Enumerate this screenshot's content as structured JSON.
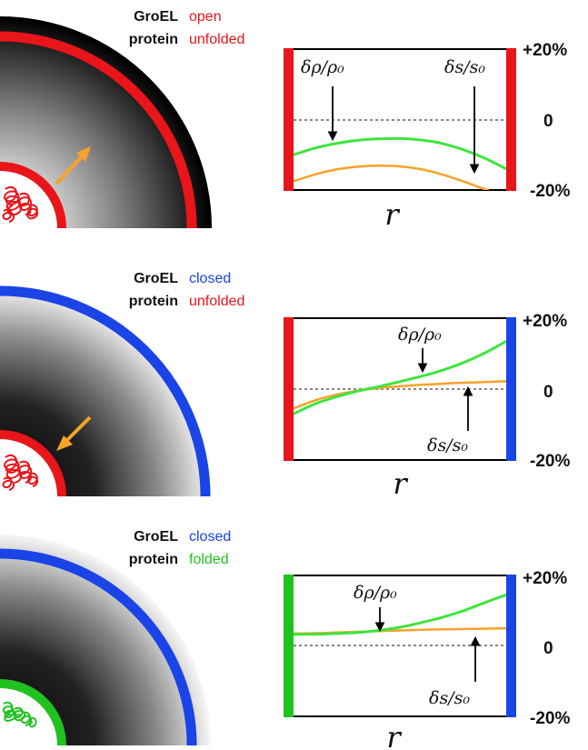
{
  "colors": {
    "red": "#e8151b",
    "blue": "#1a44e6",
    "green": "#1fc21f",
    "green_curve": "#3ee53e",
    "orange": "#f7a22a",
    "black": "#000000",
    "dotted": "#888888"
  },
  "y_ticks": [
    "+20%",
    "0",
    "-20%"
  ],
  "x_axis_label": "r",
  "panels": [
    {
      "header": {
        "groel_key": "GroEL",
        "groel_value": "open",
        "groel_color": "red",
        "protein_key": "protein",
        "protein_value": "unfolded",
        "protein_color": "red"
      },
      "left_wall_color": "red",
      "right_wall_color": "red",
      "quarter_outer_ring_color": "red",
      "quarter_inner_ring_color": "red",
      "quarter_gradient": "light-inside",
      "arrow_direction": "outward",
      "density_label": "δρ/ρ₀",
      "entropy_label": "δs/s₀",
      "chart_data": {
        "type": "line",
        "x": [
          0,
          0.1,
          0.2,
          0.3,
          0.4,
          0.5,
          0.6,
          0.7,
          0.8,
          0.9,
          1.0
        ],
        "ylim": [
          -20,
          20
        ],
        "series": [
          {
            "color": "green",
            "values": [
              -10,
              -8.1,
              -6.8,
              -5.9,
              -5.5,
              -5.4,
              -5.8,
              -6.8,
              -8.6,
              -11,
              -14
            ]
          },
          {
            "color": "orange",
            "values": [
              -17.5,
              -15.6,
              -14.2,
              -13.4,
              -13.1,
              -13.3,
              -14.1,
              -15.6,
              -17.6,
              -19.8,
              -22
            ]
          }
        ]
      }
    },
    {
      "header": {
        "groel_key": "GroEL",
        "groel_value": "closed",
        "groel_color": "blue",
        "protein_key": "protein",
        "protein_value": "unfolded",
        "protein_color": "red"
      },
      "left_wall_color": "red",
      "right_wall_color": "blue",
      "quarter_outer_ring_color": "blue",
      "quarter_inner_ring_color": "red",
      "quarter_gradient": "dark-inside",
      "arrow_direction": "inward",
      "density_label": "δρ/ρ₀",
      "entropy_label": "δs/s₀",
      "chart_data": {
        "type": "line",
        "x": [
          0,
          0.1,
          0.2,
          0.3,
          0.4,
          0.5,
          0.6,
          0.7,
          0.8,
          0.9,
          1.0
        ],
        "ylim": [
          -20,
          20
        ],
        "series": [
          {
            "color": "green",
            "values": [
              -7,
              -4.2,
              -2.2,
              -0.6,
              0.7,
              2.1,
              3.6,
              5.3,
              7.5,
              10.2,
              13.5
            ]
          },
          {
            "color": "orange",
            "values": [
              -5.5,
              -3.2,
              -1.6,
              -0.5,
              0.3,
              0.8,
              1.2,
              1.5,
              1.8,
              2.0,
              2.2
            ]
          }
        ]
      }
    },
    {
      "header": {
        "groel_key": "GroEL",
        "groel_value": "closed",
        "groel_color": "blue",
        "protein_key": "protein",
        "protein_value": "folded",
        "protein_color": "green"
      },
      "left_wall_color": "green",
      "right_wall_color": "blue",
      "quarter_outer_ring_color": "blue",
      "quarter_inner_ring_color": "green",
      "quarter_gradient": "dark-inside",
      "arrow_direction": "none",
      "density_label": "δρ/ρ₀",
      "entropy_label": "δs/s₀",
      "chart_data": {
        "type": "line",
        "x": [
          0,
          0.1,
          0.2,
          0.3,
          0.4,
          0.5,
          0.6,
          0.7,
          0.8,
          0.9,
          1.0
        ],
        "ylim": [
          -20,
          20
        ],
        "series": [
          {
            "color": "green",
            "values": [
              3.3,
              3.3,
              3.5,
              3.8,
              4.4,
              5.3,
              6.6,
              8.1,
              10,
              12.3,
              14.5
            ]
          },
          {
            "color": "orange",
            "values": [
              3.5,
              3.6,
              3.8,
              4.0,
              4.2,
              4.4,
              4.6,
              4.7,
              4.8,
              4.9,
              5.0
            ]
          }
        ]
      }
    }
  ]
}
